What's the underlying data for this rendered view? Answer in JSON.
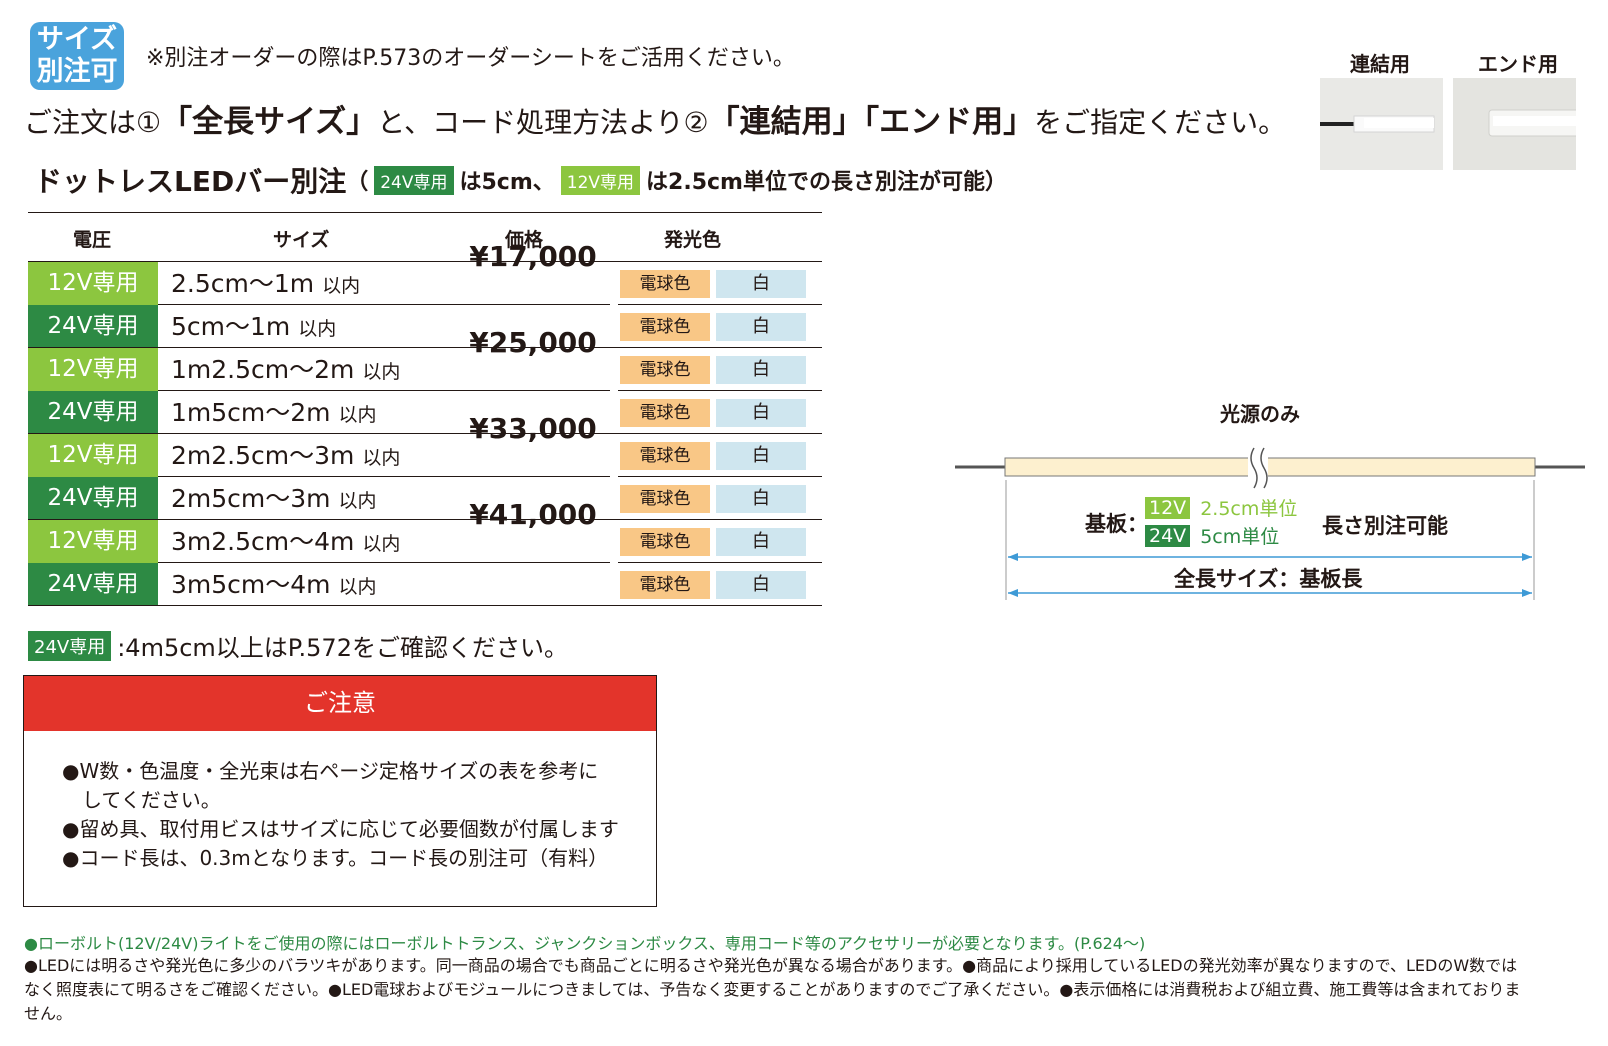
{
  "header": {
    "badge_line1": "サイズ",
    "badge_line2": "別注可",
    "note": "※別注オーダーの際はP.573のオーダーシートをご活用ください。",
    "order_prefix": "ご注文は①",
    "order_full_size": "「全長サイズ」",
    "order_mid": "と、コード処理方法より②",
    "order_connect": "「連結用」",
    "order_end": "「エンド用」",
    "order_suffix": "をご指定ください。"
  },
  "photos": {
    "connect_label": "連結用",
    "end_label": "エンド用"
  },
  "section": {
    "title": "ドットレスLEDバー別注",
    "open_paren": "（",
    "tag24": "24V専用",
    "text24": "は5cm、",
    "tag12": "12V専用",
    "text12": "は2.5cm単位での長さ別注が可能）"
  },
  "table": {
    "headers": {
      "voltage": "電圧",
      "size": "サイズ",
      "price": "価格",
      "color": "発光色"
    },
    "rows": [
      {
        "voltage": "12V専用",
        "size": "2.5cm～1m",
        "suffix": "以内",
        "bulb": "電球色",
        "white": "白"
      },
      {
        "voltage": "24V専用",
        "size": "5cm～1m",
        "suffix": "以内",
        "bulb": "電球色",
        "white": "白"
      },
      {
        "voltage": "12V専用",
        "size": "1m2.5cm～2m",
        "suffix": "以内",
        "bulb": "電球色",
        "white": "白"
      },
      {
        "voltage": "24V専用",
        "size": "1m5cm～2m",
        "suffix": "以内",
        "bulb": "電球色",
        "white": "白"
      },
      {
        "voltage": "12V専用",
        "size": "2m2.5cm～3m",
        "suffix": "以内",
        "bulb": "電球色",
        "white": "白"
      },
      {
        "voltage": "24V専用",
        "size": "2m5cm～3m",
        "suffix": "以内",
        "bulb": "電球色",
        "white": "白"
      },
      {
        "voltage": "12V専用",
        "size": "3m2.5cm～4m",
        "suffix": "以内",
        "bulb": "電球色",
        "white": "白"
      },
      {
        "voltage": "24V専用",
        "size": "3m5cm～4m",
        "suffix": "以内",
        "bulb": "電球色",
        "white": "白"
      }
    ],
    "prices": [
      "¥17,000",
      "¥25,000",
      "¥33,000",
      "¥41,000"
    ]
  },
  "footnote": {
    "tag": "24V専用",
    "text": ":4m5cm以上はP.572をご確認ください。"
  },
  "caution": {
    "title": "ご注意",
    "line1": "●W数・色温度・全光束は右ページ定格サイズの表を参考に",
    "line1b": "してください。",
    "line2": "●留め具、取付用ビスはサイズに応じて必要個数が付属します",
    "line3": "●コード長は、0.3mとなります。コード長の別注可（有料）"
  },
  "diagram": {
    "title": "光源のみ",
    "kiban": "基板：",
    "tag12": "12V",
    "unit12": "2.5cm単位",
    "tag24": "24V",
    "unit24": "5cm単位",
    "length_note": "長さ別注可能",
    "total": "全長サイズ：基板長"
  },
  "bottom": {
    "green_line": "●ローボルト(12V/24V)ライトをご使用の際にはローボルトトランス、ジャンクションボックス、専用コード等のアクセサリーが必要となります。(P.624～)",
    "text": "●LEDには明るさや発光色に多少のバラツキがあります。同一商品の場合でも商品ごとに明るさや発光色が異なる場合があります。●商品により採用しているLEDの発光効率が異なりますので、LEDのW数ではなく照度表にて明るさをご確認ください。●LED電球およびモジュールにつきましては、予告なく変更することがありますのでご了承ください。●表示価格には消費税および組立費、施工費等は含まれておりません。"
  }
}
